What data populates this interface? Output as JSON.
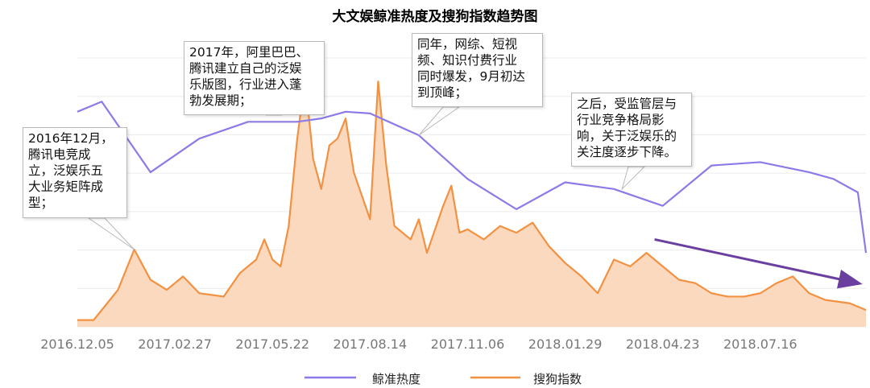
{
  "chart_data": {
    "type": "line",
    "title": "大文娱鲸准热度及搜狗指数趋势图",
    "x_ticks": [
      "2016.12.05",
      "2017.02.27",
      "2017.05.22",
      "2017.08.14",
      "2017.11.06",
      "2018.01.29",
      "2018.04.23",
      "2018.07.16"
    ],
    "x_range": [
      "2016.12.05",
      "2018.10.15"
    ],
    "grid": true,
    "legend": "bottom-center",
    "series": [
      {
        "name": "鲸准热度",
        "color": "#8B7BE8",
        "points": [
          [
            "2016.12.05",
            6.4
          ],
          [
            "2016.12.26",
            6.7
          ],
          [
            "2017.02.06",
            4.6
          ],
          [
            "2017.03.20",
            5.6
          ],
          [
            "2017.05.01",
            6.1
          ],
          [
            "2017.06.12",
            6.1
          ],
          [
            "2017.07.03",
            6.2
          ],
          [
            "2017.07.24",
            6.4
          ],
          [
            "2017.08.14",
            6.35
          ],
          [
            "2017.09.25",
            5.7
          ],
          [
            "2017.11.06",
            4.4
          ],
          [
            "2017.12.18",
            3.5
          ],
          [
            "2018.01.29",
            4.3
          ],
          [
            "2018.03.12",
            4.1
          ],
          [
            "2018.04.23",
            3.6
          ],
          [
            "2018.06.04",
            4.8
          ],
          [
            "2018.07.16",
            4.9
          ],
          [
            "2018.08.27",
            4.6
          ],
          [
            "2018.09.17",
            4.4
          ],
          [
            "2018.10.08",
            4.0
          ],
          [
            "2018.10.15",
            2.2
          ]
        ]
      },
      {
        "name": "搜狗指数",
        "color": "#F39142",
        "fill": "#FBD9BF",
        "points": [
          [
            "2016.12.05",
            0.2
          ],
          [
            "2016.12.19",
            0.2
          ],
          [
            "2016.12.26",
            0.5
          ],
          [
            "2017.01.09",
            1.1
          ],
          [
            "2017.01.23",
            2.3
          ],
          [
            "2017.02.06",
            1.4
          ],
          [
            "2017.02.20",
            1.1
          ],
          [
            "2017.03.06",
            1.5
          ],
          [
            "2017.03.20",
            1.0
          ],
          [
            "2017.04.10",
            0.9
          ],
          [
            "2017.04.24",
            1.6
          ],
          [
            "2017.05.08",
            2.0
          ],
          [
            "2017.05.15",
            2.6
          ],
          [
            "2017.05.22",
            2.0
          ],
          [
            "2017.05.29",
            1.8
          ],
          [
            "2017.06.05",
            3.0
          ],
          [
            "2017.06.12",
            5.5
          ],
          [
            "2017.06.19",
            7.4
          ],
          [
            "2017.06.26",
            5.0
          ],
          [
            "2017.07.03",
            4.1
          ],
          [
            "2017.07.10",
            5.4
          ],
          [
            "2017.07.17",
            5.6
          ],
          [
            "2017.07.24",
            6.2
          ],
          [
            "2017.07.31",
            4.6
          ],
          [
            "2017.08.14",
            3.2
          ],
          [
            "2017.08.21",
            7.3
          ],
          [
            "2017.08.28",
            4.8
          ],
          [
            "2017.09.04",
            3.0
          ],
          [
            "2017.09.18",
            2.6
          ],
          [
            "2017.09.25",
            3.2
          ],
          [
            "2017.10.02",
            2.2
          ],
          [
            "2017.10.16",
            3.6
          ],
          [
            "2017.10.23",
            4.2
          ],
          [
            "2017.10.30",
            2.8
          ],
          [
            "2017.11.06",
            2.9
          ],
          [
            "2017.11.20",
            2.6
          ],
          [
            "2017.12.04",
            3.0
          ],
          [
            "2017.12.18",
            2.8
          ],
          [
            "2018.01.01",
            3.1
          ],
          [
            "2018.01.15",
            2.4
          ],
          [
            "2018.01.29",
            1.9
          ],
          [
            "2018.02.12",
            1.5
          ],
          [
            "2018.02.26",
            1.0
          ],
          [
            "2018.03.12",
            2.0
          ],
          [
            "2018.03.26",
            1.8
          ],
          [
            "2018.04.09",
            2.2
          ],
          [
            "2018.04.23",
            1.8
          ],
          [
            "2018.05.07",
            1.4
          ],
          [
            "2018.05.21",
            1.3
          ],
          [
            "2018.06.04",
            1.0
          ],
          [
            "2018.06.18",
            0.9
          ],
          [
            "2018.07.02",
            0.9
          ],
          [
            "2018.07.16",
            1.0
          ],
          [
            "2018.07.30",
            1.3
          ],
          [
            "2018.08.13",
            1.5
          ],
          [
            "2018.08.27",
            1.0
          ],
          [
            "2018.09.10",
            0.8
          ],
          [
            "2018.10.01",
            0.7
          ],
          [
            "2018.10.15",
            0.5
          ]
        ]
      }
    ],
    "annotations": [
      {
        "text": "2016年12月，\n腾讯电竞成\n立，泛娱乐五\n大业务矩阵成\n型；",
        "at": [
          "2017.01.23",
          2.3
        ]
      },
      {
        "text": "2017年，阿里巴巴、\n腾讯建立自己的泛娱\n乐版图，行业进入蓬\n勃发展期；",
        "at": [
          "2017.06.05",
          6.5
        ]
      },
      {
        "text": "同年，网综、短视\n频、知识付费行业\n同时爆发，9月初达\n到顶峰；",
        "at": [
          "2017.09.25",
          5.7
        ]
      },
      {
        "text": "之后，受监管层与\n行业竞争格局影\n响，关于泛娱乐的\n关注度逐步下降。",
        "at": [
          "2018.03.19",
          4.1
        ]
      }
    ],
    "trend_arrow": {
      "color": "#6A3FA0",
      "from": [
        "2018.04.16",
        2.6
      ],
      "to": [
        "2018.10.08",
        1.3
      ]
    }
  }
}
